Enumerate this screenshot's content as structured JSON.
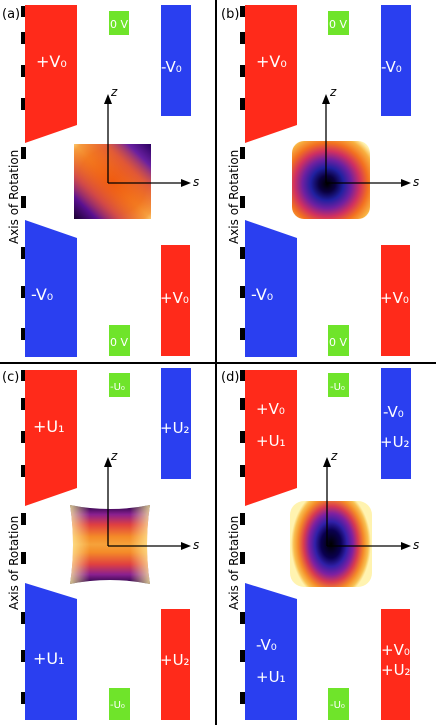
{
  "panels": {
    "a": {
      "tag": "(a)",
      "top_left": "+V₀",
      "top_mid": "0 V",
      "top_right": "-V₀",
      "bot_left": "-V₀",
      "bot_mid": "0 V",
      "bot_right": "+V₀",
      "axis_label": "Axis of Rotation",
      "z_label": "z",
      "s_label": "s"
    },
    "b": {
      "tag": "(b)",
      "top_left": "+V₀",
      "top_mid": "0 V",
      "top_right": "-V₀",
      "bot_left": "-V₀",
      "bot_mid": "0 V",
      "bot_right": "+V₀",
      "axis_label": "Axis of Rotation",
      "z_label": "z",
      "s_label": "s"
    },
    "c": {
      "tag": "(c)",
      "top_left": "+U₁",
      "top_mid": "-U₀",
      "top_right": "+U₂",
      "bot_left": "+U₁",
      "bot_mid": "-U₀",
      "bot_right": "+U₂",
      "axis_label": "Axis of Rotation",
      "z_label": "z",
      "s_label": "s"
    },
    "d": {
      "tag": "(d)",
      "top_left_1": "+V₀",
      "top_left_2": "+U₁",
      "top_mid": "-U₀",
      "top_right_1": "-V₀",
      "top_right_2": "+U₂",
      "bot_left_1": "-V₀",
      "bot_left_2": "+U₁",
      "bot_mid": "-U₀",
      "bot_right_1": "+V₀",
      "bot_right_2": "+U₂",
      "axis_label": "Axis of Rotation",
      "z_label": "z",
      "s_label": "s"
    }
  },
  "colors": {
    "red": "#ff2a1a",
    "blue": "#2a3ff0",
    "green": "#6fe42a",
    "divider": "#000000"
  }
}
